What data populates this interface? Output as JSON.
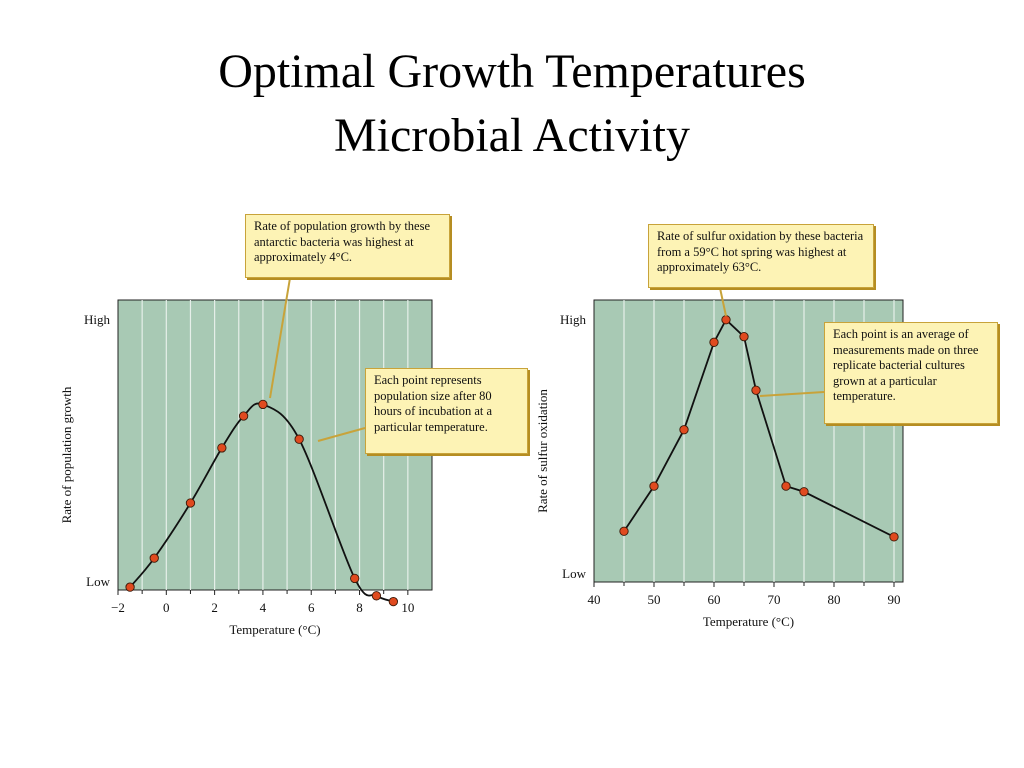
{
  "title": {
    "line1": "Optimal Growth Temperatures",
    "line2": "Microbial Activity"
  },
  "colors": {
    "plot_bg": "#a8c9b4",
    "marker": "#e04a1f",
    "callout_bg": "#fdf3b5"
  },
  "chart_data": [
    {
      "type": "line",
      "title": "",
      "xlabel": "Temperature (°C)",
      "ylabel": "Rate of population growth",
      "xlim": [
        -2,
        11
      ],
      "ylim": [
        0,
        100
      ],
      "xticks": [
        -2,
        0,
        2,
        4,
        6,
        8,
        10
      ],
      "ytick_labels": {
        "low": "Low",
        "high": "High"
      },
      "grid": "vertical",
      "curve": "smooth",
      "series": [
        {
          "x": [
            -1.5,
            -0.5,
            1.0,
            2.3,
            3.2,
            4.0,
            5.5,
            7.8,
            8.7,
            9.4
          ],
          "y": [
            1,
            11,
            30,
            49,
            60,
            64,
            52,
            4,
            -2,
            -4
          ]
        }
      ],
      "annotations": [
        {
          "text": "Rate of population growth by these antarctic bacteria was highest at approximately 4°C."
        },
        {
          "text": "Each point represents population size after 80 hours of incubation at a particular temperature."
        }
      ]
    },
    {
      "type": "line",
      "title": "",
      "xlabel": "Temperature (°C)",
      "ylabel": "Rate of sulfur oxidation",
      "xlim": [
        40,
        91.5
      ],
      "ylim": [
        0,
        100
      ],
      "xticks": [
        40,
        50,
        60,
        70,
        80,
        90
      ],
      "ytick_labels": {
        "low": "Low",
        "high": "High"
      },
      "grid": "vertical",
      "curve": "straight",
      "series": [
        {
          "x": [
            45,
            50,
            55,
            60,
            62,
            65,
            67,
            72,
            75,
            90
          ],
          "y": [
            18,
            34,
            54,
            85,
            93,
            87,
            68,
            34,
            32,
            16
          ]
        }
      ],
      "annotations": [
        {
          "text": "Rate of sulfur oxidation by these bacteria from a 59°C hot spring was highest at approximately 63°C."
        },
        {
          "text": "Each point is an average of measurements made on three replicate bacterial cultures grown at a particular temperature."
        }
      ]
    }
  ]
}
